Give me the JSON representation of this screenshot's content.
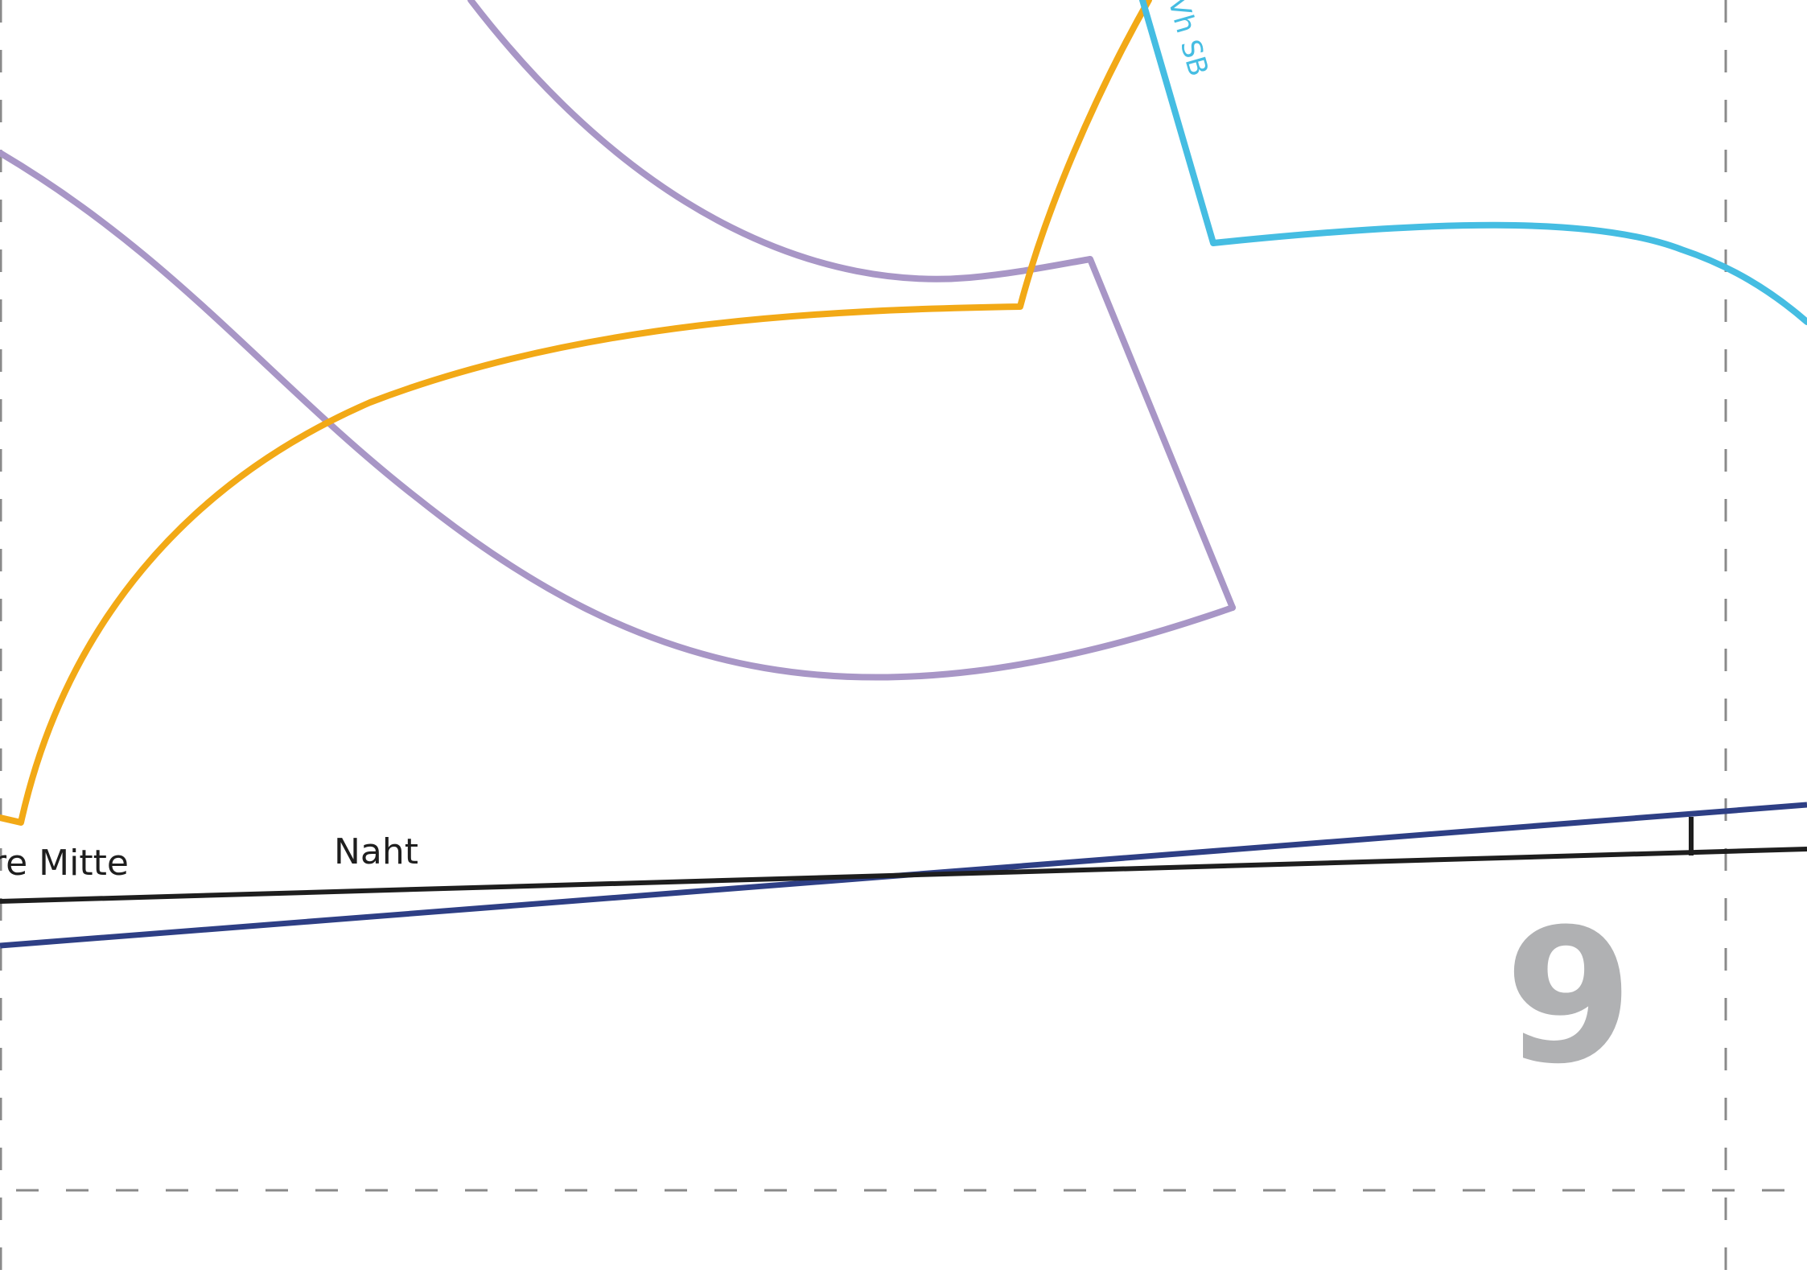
{
  "pattern_sheet": {
    "page_number": "9",
    "labels": {
      "center_front": "re Mitte",
      "seam": "Naht",
      "mark": "Vh SB"
    },
    "colors": {
      "background": "#ffffff",
      "purple_piece": "#a896c6",
      "orange_piece": "#f2a916",
      "cyan_piece": "#45bde2",
      "navy_line": "#2e3f85",
      "black_line": "#1e1e1e",
      "tile_guide": "#8a8a8a",
      "page_number": "#b0b1b3"
    }
  }
}
